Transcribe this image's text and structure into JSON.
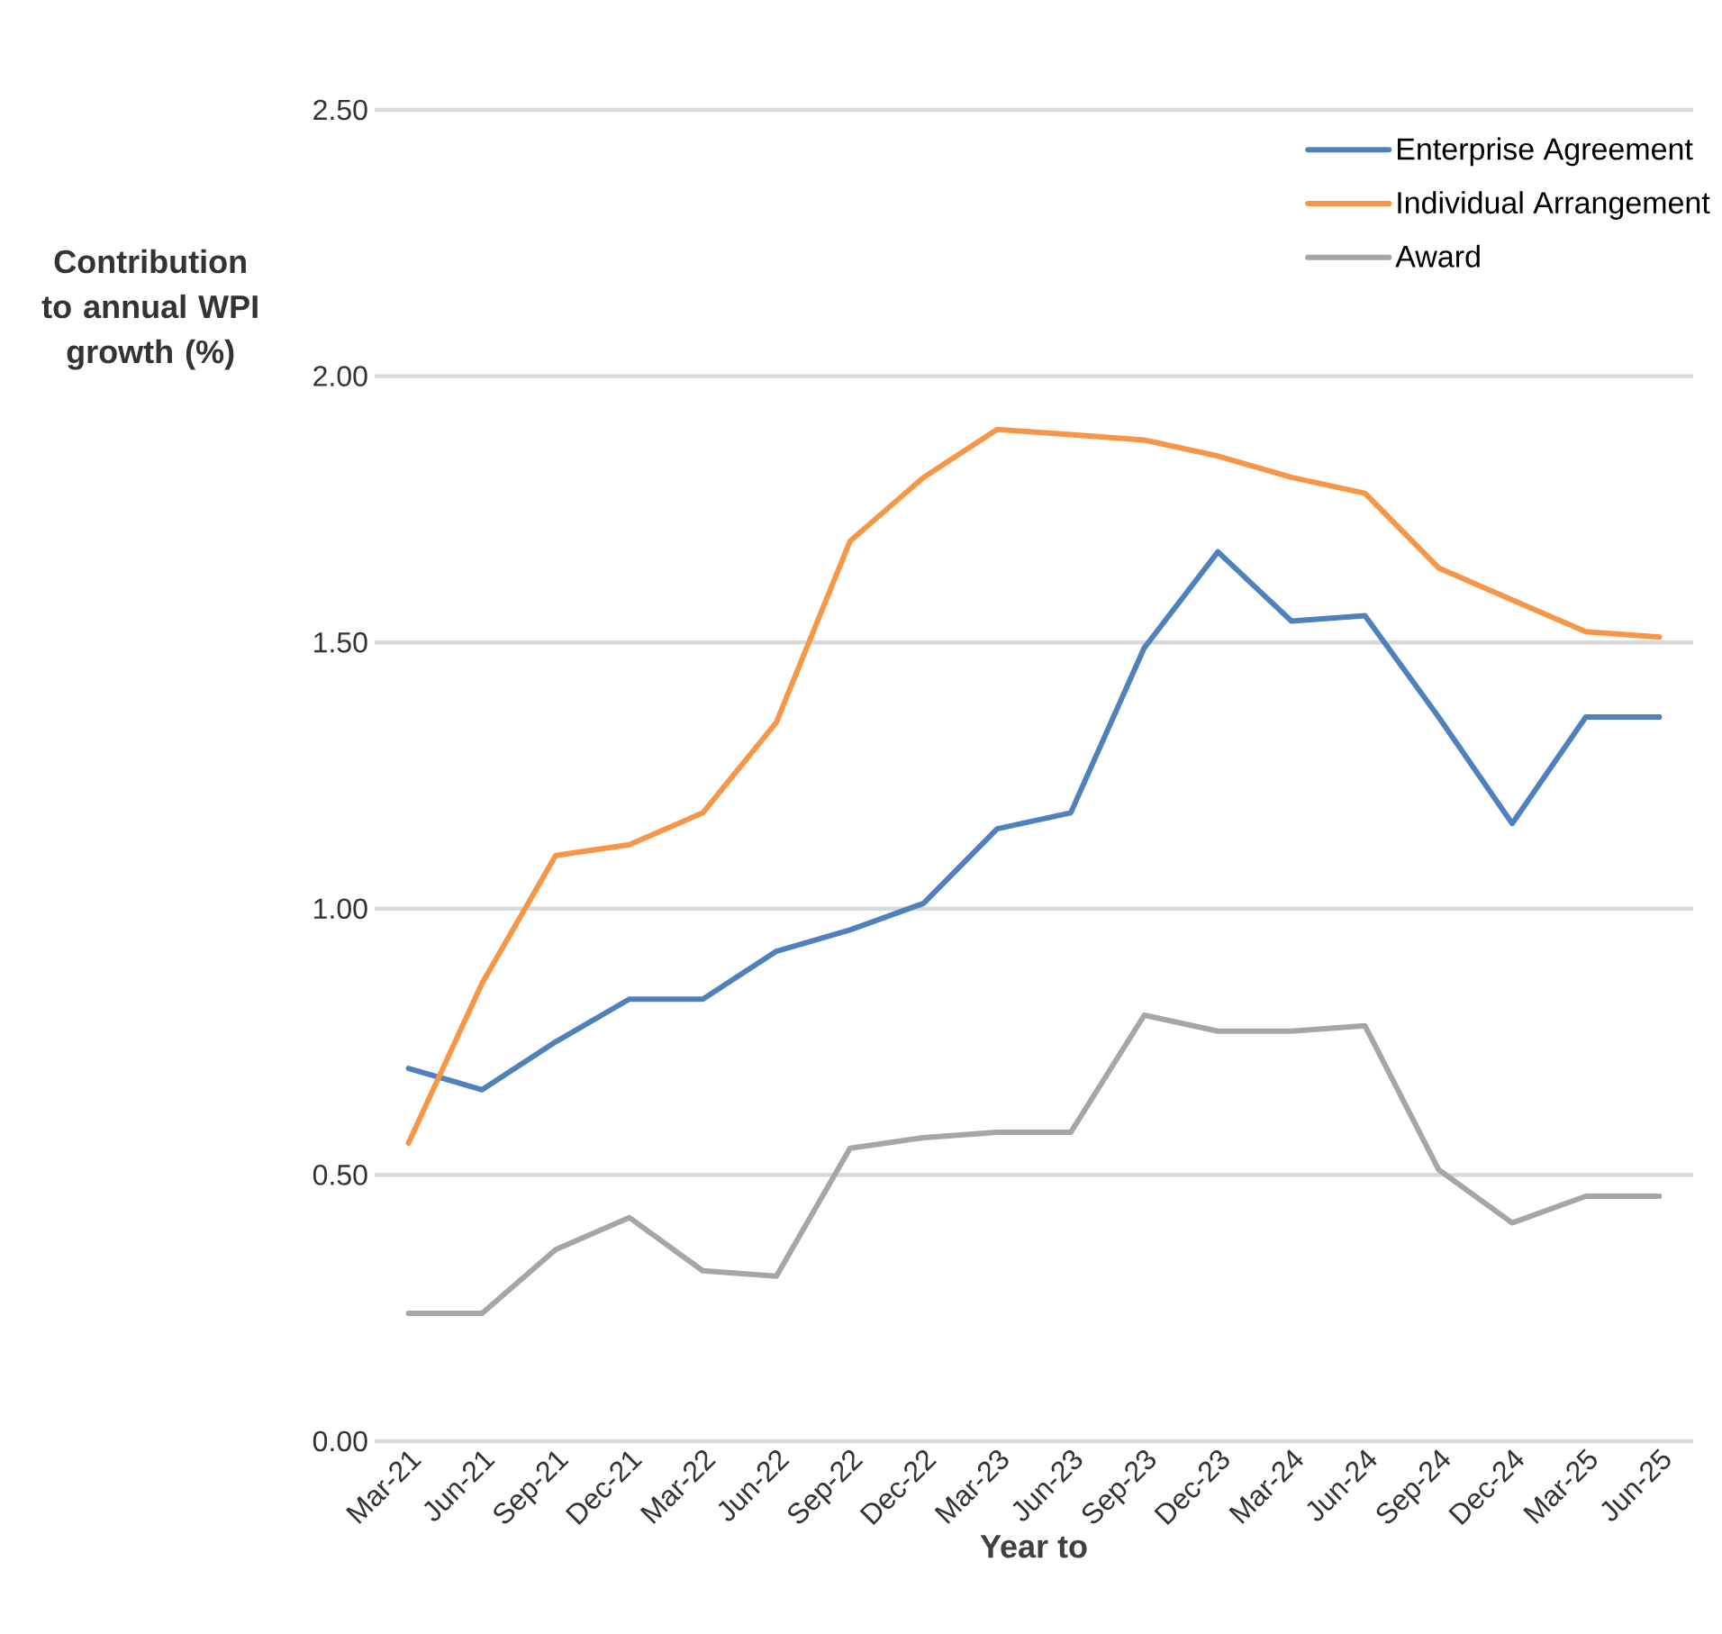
{
  "chart_data": {
    "type": "line",
    "xlabel": "Year to",
    "ylabel": "Contribution to annual WPI growth (%)",
    "categories": [
      "Mar-21",
      "Jun-21",
      "Sep-21",
      "Dec-21",
      "Mar-22",
      "Jun-22",
      "Sep-22",
      "Dec-22",
      "Mar-23",
      "Jun-23",
      "Sep-23",
      "Dec-23",
      "Mar-24",
      "Jun-24",
      "Sep-24",
      "Dec-24",
      "Mar-25",
      "Jun-25"
    ],
    "series": [
      {
        "name": "Enterprise Agreement",
        "color": "#4f81bd",
        "values": [
          0.7,
          0.66,
          0.75,
          0.83,
          0.83,
          0.92,
          0.96,
          1.01,
          1.15,
          1.18,
          1.49,
          1.67,
          1.54,
          1.55,
          1.36,
          1.16,
          1.36,
          1.36
        ]
      },
      {
        "name": "Individual Arrangement",
        "color": "#f79646",
        "values": [
          0.56,
          0.86,
          1.1,
          1.12,
          1.18,
          1.35,
          1.69,
          1.81,
          1.9,
          1.89,
          1.88,
          1.85,
          1.81,
          1.78,
          1.64,
          1.58,
          1.52,
          1.51
        ]
      },
      {
        "name": "Award",
        "color": "#a6a6a6",
        "values": [
          0.24,
          0.24,
          0.36,
          0.42,
          0.32,
          0.31,
          0.55,
          0.57,
          0.58,
          0.58,
          0.8,
          0.77,
          0.77,
          0.78,
          0.51,
          0.41,
          0.46,
          0.46
        ]
      }
    ],
    "ylim": [
      0,
      2.5
    ],
    "yticks": [
      {
        "value": 0,
        "label": "0.00"
      },
      {
        "value": 0.5,
        "label": "0.50"
      },
      {
        "value": 1,
        "label": "1.00"
      },
      {
        "value": 1.5,
        "label": "1.50"
      },
      {
        "value": 2,
        "label": "2.00"
      },
      {
        "value": 2.5,
        "label": "2.50"
      }
    ],
    "grid": "y",
    "legend": "top right"
  }
}
